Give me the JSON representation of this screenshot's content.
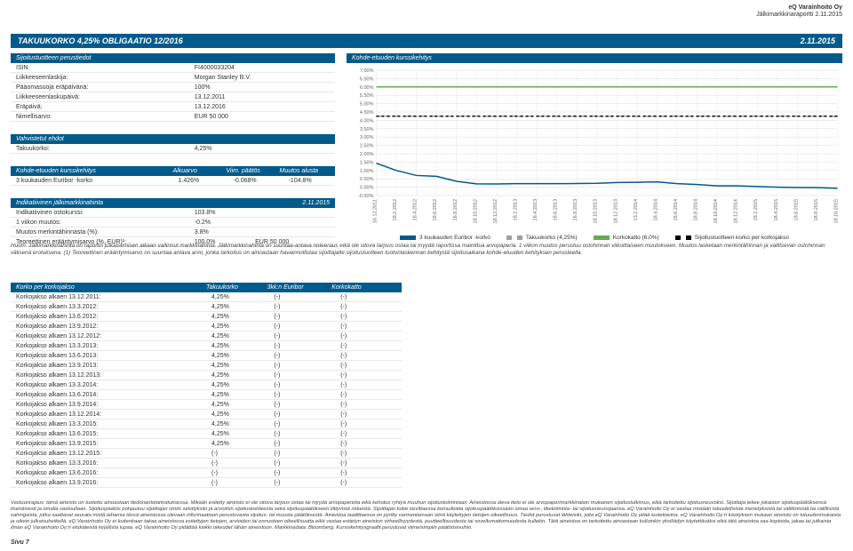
{
  "header": {
    "company": "eQ Varainhoito Oy",
    "report": "Jälkimarkkinaraportti 2.11.2015"
  },
  "title_bar": {
    "left": "TAKUUKORKO 4,25% OBLIGAATIO 12/2016",
    "right": "2.11.2015"
  },
  "basic": {
    "header": "Sijoitustuotteen perustiedot",
    "rows": [
      {
        "k": "ISIN:",
        "v": "FI4000033204"
      },
      {
        "k": "Liikkeeseenlaskija:",
        "v": "Morgan Stanley B.V."
      },
      {
        "k": "Pääomasuoja eräpäivänä:",
        "v": "100%"
      },
      {
        "k": "Liikkeeseenlaskupäivä:",
        "v": "13.12.2011"
      },
      {
        "k": "Eräpäivä:",
        "v": "13.12.2016"
      },
      {
        "k": "Nimellisarvo:",
        "v": "EUR 50 000"
      }
    ]
  },
  "confirmed": {
    "header": "Vahvistetut ehdot",
    "rows": [
      {
        "k": "Takuukorko:",
        "v": "4,25%"
      }
    ]
  },
  "underlying": {
    "header": "Kohde-etuuden kurssikehitys",
    "cols": [
      "",
      "Alkuarvo",
      "Viim. päätös",
      "Muutos alusta"
    ],
    "rows": [
      {
        "k": "3 kuukauden Euribor -korko",
        "c1": "1.426%",
        "c2": "-0.068%",
        "c3": "-104.8%"
      }
    ]
  },
  "indicative": {
    "header": "Indikatiivinen jälkimarkkinahinta",
    "header_right": "2.11.2015",
    "rows": [
      {
        "k": "Indikatiivinen ostokurssi:",
        "v": "103.8%"
      },
      {
        "k": "1 viikon muutos:",
        "v": "-0.2%"
      },
      {
        "k": "Muutos merkintähinnasta (%):",
        "v": "3.8%"
      },
      {
        "k": "Teoreettinen erääntymisarvo (%, EUR)¹:",
        "v": "100.0%",
        "v2": "EUR 50 000"
      }
    ]
  },
  "chart": {
    "header": "Kohde-etuuden kurssikehitys",
    "ylim": [
      -0.5,
      7.0
    ],
    "ytick_step": 0.5,
    "yticks_labels": [
      "-0.50%",
      "0.00%",
      "0.50%",
      "1.00%",
      "1.50%",
      "2.00%",
      "2.50%",
      "3.00%",
      "3.50%",
      "4.00%",
      "4.50%",
      "5.00%",
      "5.50%",
      "6.00%",
      "6.50%",
      "7.00%"
    ],
    "x_labels": [
      "16.12.2011",
      "18.2.2012",
      "18.4.2012",
      "18.6.2012",
      "18.8.2012",
      "18.10.2012",
      "18.12.2012",
      "18.2.2013",
      "18.4.2013",
      "18.6.2013",
      "18.8.2013",
      "18.10.2013",
      "18.12.2013",
      "13.2.2014",
      "18.4.2014",
      "18.6.2014",
      "18.8.2014",
      "18.10.2014",
      "18.12.2014",
      "18.2.2015",
      "18.4.2015",
      "18.6.2015",
      "18.8.2015",
      "18.10.2015"
    ],
    "series": [
      {
        "name": "3 kuukauden Euribor -korko",
        "color": "#005a8c",
        "dash": "none",
        "values": [
          1.43,
          1.0,
          0.7,
          0.65,
          0.35,
          0.2,
          0.19,
          0.21,
          0.21,
          0.21,
          0.22,
          0.23,
          0.28,
          0.29,
          0.32,
          0.21,
          0.16,
          0.08,
          0.08,
          0.04,
          0.0,
          -0.02,
          -0.03,
          -0.07
        ]
      },
      {
        "name": "Takuukorko (4,25%)",
        "color": "#9aa0a6",
        "dash": "6 4",
        "values": [
          4.25,
          4.25,
          4.25,
          4.25,
          4.25,
          4.25,
          4.25,
          4.25,
          4.25,
          4.25,
          4.25,
          4.25,
          4.25,
          4.25,
          4.25,
          4.25,
          4.25,
          4.25,
          4.25,
          4.25,
          4.25,
          4.25,
          4.25,
          4.25
        ]
      },
      {
        "name": "Korkokatto (6,0%)",
        "color": "#6aa84f",
        "dash": "none",
        "values": [
          6.0,
          6.0,
          6.0,
          6.0,
          6.0,
          6.0,
          6.0,
          6.0,
          6.0,
          6.0,
          6.0,
          6.0,
          6.0,
          6.0,
          6.0,
          6.0,
          6.0,
          6.0,
          6.0,
          6.0,
          6.0,
          6.0,
          6.0,
          6.0
        ]
      },
      {
        "name": "Sijoitustuotteen korko per korkojakso",
        "color": "#000000",
        "dash": "3 3",
        "values": [
          4.25,
          4.25,
          4.25,
          4.25,
          4.25,
          4.25,
          4.25,
          4.25,
          4.25,
          4.25,
          4.25,
          4.25,
          4.25,
          4.25,
          4.25,
          4.25,
          4.25,
          4.25,
          4.25,
          4.25,
          4.25,
          4.25,
          4.25,
          4.25
        ]
      }
    ],
    "grid_color": "#dddddd",
    "background": "#ffffff",
    "axis_fontsize": 5.5
  },
  "note_text": "Huom: Jälkimarkkinahinta on raportin julkaisemisen aikaan vallinnut markkinahinta. Jälkimarkkinahinta on suuntaa-antava noteeraus eikä ole sitova tarjous ostaa tai myydä raportissa mainittua arvopaperia. 1 viikon muutos perustuu ostohinnan viikoittaiseen muutokseen. Muutos lasketaan merkintähinnan ja vallitsevan ostohinnan välisenä erotuksena. (1) Teoreettinen erääntymisarvo on suuntaa antava arvo, jonka tarkoitus on ainoastaan havainnollistaa sijoittajalle sijoitustuotteen tuotonlaskennan kehitystä sijoitusaikana kohde-etuuden kehityksen perusteella.",
  "coupon": {
    "header_cols": [
      "Korko per korkojakso",
      "Takuukorko",
      "3kk:n Euribor",
      "Korkokatto"
    ],
    "rows": [
      {
        "k": "Korkojakso alkaen 13.12.2011:",
        "c1": "4,25%",
        "c2": "(-)",
        "c3": "(-)"
      },
      {
        "k": "Korkojakso alkaen 13.3.2012:",
        "c1": "4,25%",
        "c2": "(-)",
        "c3": "(-)"
      },
      {
        "k": "Korkojakso alkaen 13.6.2012:",
        "c1": "4,25%",
        "c2": "(-)",
        "c3": "(-)"
      },
      {
        "k": "Korkojakso alkaen 13.9.2012:",
        "c1": "4,25%",
        "c2": "(-)",
        "c3": "(-)"
      },
      {
        "k": "Korkojakso alkaen 13.12.2012:",
        "c1": "4,25%",
        "c2": "(-)",
        "c3": "(-)"
      },
      {
        "k": "Korkojakso alkaen 13.3.2013:",
        "c1": "4,25%",
        "c2": "(-)",
        "c3": "(-)"
      },
      {
        "k": "Korkojakso alkaen 13.6.2013:",
        "c1": "4,25%",
        "c2": "(-)",
        "c3": "(-)"
      },
      {
        "k": "Korkojakso alkaen 13.9.2013:",
        "c1": "4,25%",
        "c2": "(-)",
        "c3": "(-)"
      },
      {
        "k": "Korkojakso alkaen 13.12.2013:",
        "c1": "4,25%",
        "c2": "(-)",
        "c3": "(-)"
      },
      {
        "k": "Korkojakso alkaen 13.3.2014:",
        "c1": "4,25%",
        "c2": "(-)",
        "c3": "(-)"
      },
      {
        "k": "Korkojakso alkaen 13.6.2014:",
        "c1": "4,25%",
        "c2": "(-)",
        "c3": "(-)"
      },
      {
        "k": "Korkojakso alkaen 13.9.2014:",
        "c1": "4,25%",
        "c2": "(-)",
        "c3": "(-)"
      },
      {
        "k": "Korkojakso alkaen 13.12.2014:",
        "c1": "4,25%",
        "c2": "(-)",
        "c3": "(-)"
      },
      {
        "k": "Korkojakso alkaen 13.3.2015:",
        "c1": "4,25%",
        "c2": "(-)",
        "c3": "(-)"
      },
      {
        "k": "Korkojakso alkaen 13.6.2015:",
        "c1": "4,25%",
        "c2": "(-)",
        "c3": "(-)"
      },
      {
        "k": "Korkojakso alkaen 13.9.2015:",
        "c1": "4,25%",
        "c2": "(-)",
        "c3": "(-)"
      },
      {
        "k": "Korkojakso alkaen 13.12.2015:",
        "c1": "(-)",
        "c2": "(-)",
        "c3": "(-)"
      },
      {
        "k": "Korkojakso alkaen 13.3.2016:",
        "c1": "(-)",
        "c2": "(-)",
        "c3": "(-)"
      },
      {
        "k": "Korkojakso alkaen 13.6.2016:",
        "c1": "(-)",
        "c2": "(-)",
        "c3": "(-)"
      },
      {
        "k": "Korkojakso alkaen 13.9.2016:",
        "c1": "(-)",
        "c2": "(-)",
        "c3": "(-)"
      }
    ]
  },
  "disclaimer": "Vastuunrajaus: tämä aineisto on tuotettu ainoastaan tiedonantotarkoituksessa. Mikään esitetty aineisto ei ole sitova tarjous ostaa tai myydä arvopapereita eikä kehotus ryhtyä muuhun sijoitustoimintaan. Aineistossa oleva tieto ei ole arvopaperimarkkinalain mukainen sijoitustutkimus, eikä tarkoitettu sijoitusneuvoksi. Sijoittaja tekee jokaisen sijoituspäätöksensä itsenäisesti ja omalla vastuullaan. Sijoituspäätös pohjautuu sijoittajan omiin selvityksiin ja arvioihin sijoituskohteesta sekä sijoituspäätökseen liittyvistä riskeistä. Sijoittajan tulee tarvittaessa konsultoida sijoituspäätöksissään omaa vero-, liketoiminta- tai sijoitusneuvojaansa. eQ Varainhoito Oy ei vastaa mistään taloudellisista menetyksistä tai välittömistä tai välillisistä vahingoista, jotka saattavat seurata mistä tahansa tässä aineistossa olevaan informaatioon perustuvasta sijoitus- tai muusta päätöksestä. Aineistoa laadittaessa on pyritty varmentamaan siinä käytettyjen tietojen oikeellisuus. Tiedot perustuvat lähteisiin, joita eQ Varainhoito Oy pitää luotettavina. eQ Varainhoito Oy:n käsityksen mukaan aineisto on totuudenmukaista ja oikein julkaisuhetkellä. eQ Varainhoito Oy ei kuitenkaan takaa aineistossa esitettyjen tietojen, arvioiden tai ennusteen oikeellisuutta eikä vastaa esitetyn aineiston virheellisyydestä, puutteellisuudesta tai soveltumattomuudesta kullekin. Tätä aineistoa on tarkoitettu ainoastaan kulloinkin yksilöidyn käytettäväksi eikä tätä aineistoa saa kopioida, jakaa tai julkaista ilman eQ Varainhoito Oy:n etukäteistä kirjallista lupaa. eQ Varainhoito Oy pidättää kaikki oikeudet tähän aineistoon. Markkinadata: Bloomberg. Kurssikehitysgraafit perustuvat viimeisimpiin päätöösivuihin.",
  "page": "Sivu 7"
}
